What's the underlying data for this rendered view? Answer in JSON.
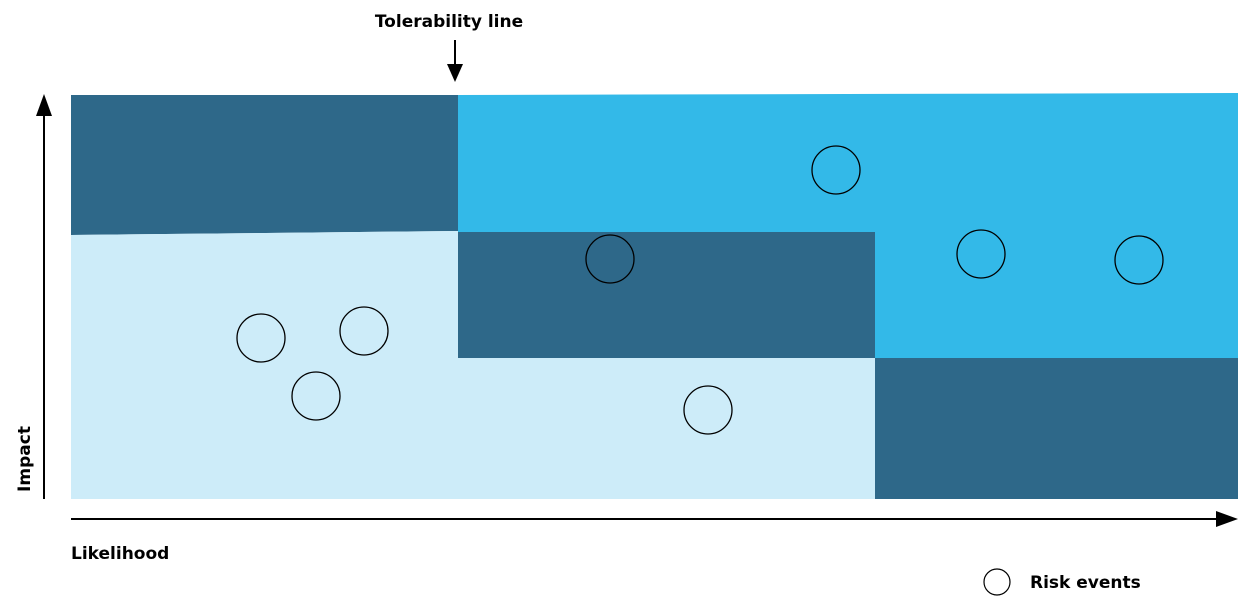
{
  "diagram": {
    "title": "Tolerability line",
    "x_axis_label": "Likelihood",
    "y_axis_label": "Impact",
    "legend_label": "Risk events",
    "colors": {
      "dark_zone": "#2e6889",
      "bright_zone": "#33b9e8",
      "light_zone": "#cdecf9",
      "outline": "#000000"
    }
  }
}
